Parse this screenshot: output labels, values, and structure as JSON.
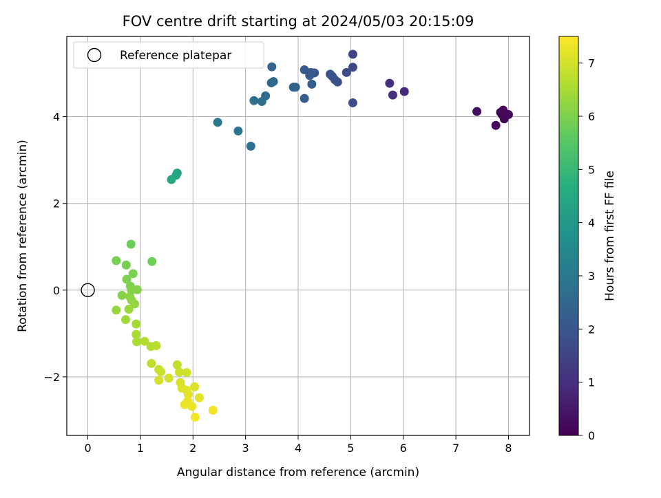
{
  "chart_data": {
    "type": "scatter",
    "title": "FOV centre drift starting at 2024/05/03 20:15:09",
    "xlabel": "Angular distance from reference (arcmin)",
    "ylabel": "Rotation from reference (arcmin)",
    "xlim": [
      -0.4,
      8.4
    ],
    "ylim": [
      -3.35,
      5.85
    ],
    "x_ticks": [
      0,
      1,
      2,
      3,
      4,
      5,
      6,
      7,
      8
    ],
    "x_tick_labels": [
      "0",
      "1",
      "2",
      "3",
      "4",
      "5",
      "6",
      "7",
      "8"
    ],
    "y_ticks": [
      -2,
      0,
      2,
      4
    ],
    "y_tick_labels": [
      "−2",
      "0",
      "2",
      "4"
    ],
    "grid": true,
    "legend": {
      "placement": "top-left",
      "entries": [
        {
          "label": "Reference platepar",
          "marker": "open-circle"
        }
      ]
    },
    "reference_point": {
      "x": 0,
      "y": 0
    },
    "colorbar": {
      "label": "Hours from first FF file",
      "colormap": "viridis",
      "range": [
        0,
        7.5
      ],
      "ticks": [
        0,
        1,
        2,
        3,
        4,
        5,
        6,
        7
      ],
      "tick_labels": [
        "0",
        "1",
        "2",
        "3",
        "4",
        "5",
        "6",
        "7"
      ]
    },
    "points": [
      {
        "x": 7.88,
        "y": 4.05,
        "c": 0.05
      },
      {
        "x": 7.92,
        "y": 3.95,
        "c": 0.1
      },
      {
        "x": 7.85,
        "y": 4.1,
        "c": 0.1
      },
      {
        "x": 8.0,
        "y": 4.05,
        "c": 0.15
      },
      {
        "x": 7.9,
        "y": 4.15,
        "c": 0.15
      },
      {
        "x": 7.76,
        "y": 3.8,
        "c": 0.2
      },
      {
        "x": 7.4,
        "y": 4.12,
        "c": 0.3
      },
      {
        "x": 6.02,
        "y": 4.58,
        "c": 0.9
      },
      {
        "x": 5.8,
        "y": 4.5,
        "c": 1.0
      },
      {
        "x": 5.74,
        "y": 4.77,
        "c": 1.0
      },
      {
        "x": 5.04,
        "y": 5.44,
        "c": 1.5
      },
      {
        "x": 5.04,
        "y": 5.14,
        "c": 1.6
      },
      {
        "x": 4.92,
        "y": 5.02,
        "c": 1.7
      },
      {
        "x": 5.04,
        "y": 4.32,
        "c": 1.7
      },
      {
        "x": 4.75,
        "y": 4.8,
        "c": 1.8
      },
      {
        "x": 4.7,
        "y": 4.85,
        "c": 1.85
      },
      {
        "x": 4.65,
        "y": 4.93,
        "c": 1.9
      },
      {
        "x": 4.61,
        "y": 4.98,
        "c": 1.9
      },
      {
        "x": 4.31,
        "y": 5.01,
        "c": 2.0
      },
      {
        "x": 4.24,
        "y": 5.02,
        "c": 2.05
      },
      {
        "x": 4.12,
        "y": 5.08,
        "c": 2.1
      },
      {
        "x": 4.22,
        "y": 4.95,
        "c": 2.1
      },
      {
        "x": 4.26,
        "y": 4.75,
        "c": 2.2
      },
      {
        "x": 4.12,
        "y": 4.42,
        "c": 2.2
      },
      {
        "x": 3.95,
        "y": 4.68,
        "c": 2.3
      },
      {
        "x": 3.91,
        "y": 4.68,
        "c": 2.35
      },
      {
        "x": 3.5,
        "y": 5.15,
        "c": 2.4
      },
      {
        "x": 3.53,
        "y": 4.81,
        "c": 2.5
      },
      {
        "x": 3.49,
        "y": 4.78,
        "c": 2.55
      },
      {
        "x": 3.38,
        "y": 4.48,
        "c": 2.6
      },
      {
        "x": 3.31,
        "y": 4.35,
        "c": 2.7
      },
      {
        "x": 3.16,
        "y": 4.37,
        "c": 2.75
      },
      {
        "x": 3.1,
        "y": 3.32,
        "c": 2.8
      },
      {
        "x": 2.86,
        "y": 3.67,
        "c": 2.9
      },
      {
        "x": 2.47,
        "y": 3.87,
        "c": 3.0
      },
      {
        "x": 1.7,
        "y": 2.7,
        "c": 4.4
      },
      {
        "x": 1.68,
        "y": 2.65,
        "c": 4.45
      },
      {
        "x": 1.59,
        "y": 2.55,
        "c": 4.5
      },
      {
        "x": 0.82,
        "y": 1.06,
        "c": 5.8
      },
      {
        "x": 1.22,
        "y": 0.66,
        "c": 5.8
      },
      {
        "x": 0.54,
        "y": 0.68,
        "c": 5.9
      },
      {
        "x": 0.73,
        "y": 0.58,
        "c": 5.9
      },
      {
        "x": 0.86,
        "y": 0.38,
        "c": 5.95
      },
      {
        "x": 0.74,
        "y": 0.25,
        "c": 6.0
      },
      {
        "x": 0.81,
        "y": 0.09,
        "c": 6.0
      },
      {
        "x": 0.94,
        "y": 0.01,
        "c": 6.05
      },
      {
        "x": 0.83,
        "y": 0.0,
        "c": 6.1
      },
      {
        "x": 0.65,
        "y": -0.12,
        "c": 6.1
      },
      {
        "x": 0.8,
        "y": -0.15,
        "c": 6.15
      },
      {
        "x": 0.83,
        "y": -0.23,
        "c": 6.2
      },
      {
        "x": 0.89,
        "y": -0.32,
        "c": 6.25
      },
      {
        "x": 0.54,
        "y": -0.46,
        "c": 6.3
      },
      {
        "x": 0.78,
        "y": -0.44,
        "c": 6.35
      },
      {
        "x": 0.72,
        "y": -0.68,
        "c": 6.4
      },
      {
        "x": 0.92,
        "y": -0.78,
        "c": 6.45
      },
      {
        "x": 0.92,
        "y": -1.02,
        "c": 6.5
      },
      {
        "x": 0.93,
        "y": -1.19,
        "c": 6.55
      },
      {
        "x": 1.08,
        "y": -1.18,
        "c": 6.6
      },
      {
        "x": 1.2,
        "y": -1.3,
        "c": 6.65
      },
      {
        "x": 1.3,
        "y": -1.28,
        "c": 6.7
      },
      {
        "x": 1.21,
        "y": -1.69,
        "c": 6.75
      },
      {
        "x": 1.7,
        "y": -1.72,
        "c": 6.8
      },
      {
        "x": 1.35,
        "y": -1.83,
        "c": 6.85
      },
      {
        "x": 1.39,
        "y": -1.88,
        "c": 6.9
      },
      {
        "x": 1.74,
        "y": -1.89,
        "c": 6.9
      },
      {
        "x": 1.88,
        "y": -1.9,
        "c": 6.95
      },
      {
        "x": 1.54,
        "y": -2.03,
        "c": 7.0
      },
      {
        "x": 1.35,
        "y": -2.08,
        "c": 7.0
      },
      {
        "x": 1.76,
        "y": -2.13,
        "c": 7.05
      },
      {
        "x": 1.79,
        "y": -2.26,
        "c": 7.1
      },
      {
        "x": 2.03,
        "y": -2.23,
        "c": 7.1
      },
      {
        "x": 1.88,
        "y": -2.31,
        "c": 7.15
      },
      {
        "x": 1.91,
        "y": -2.4,
        "c": 7.2
      },
      {
        "x": 2.12,
        "y": -2.48,
        "c": 7.2
      },
      {
        "x": 1.9,
        "y": -2.55,
        "c": 7.25
      },
      {
        "x": 1.84,
        "y": -2.64,
        "c": 7.3
      },
      {
        "x": 1.98,
        "y": -2.68,
        "c": 7.3
      },
      {
        "x": 2.38,
        "y": -2.77,
        "c": 7.35
      },
      {
        "x": 2.04,
        "y": -2.93,
        "c": 7.4
      }
    ]
  }
}
